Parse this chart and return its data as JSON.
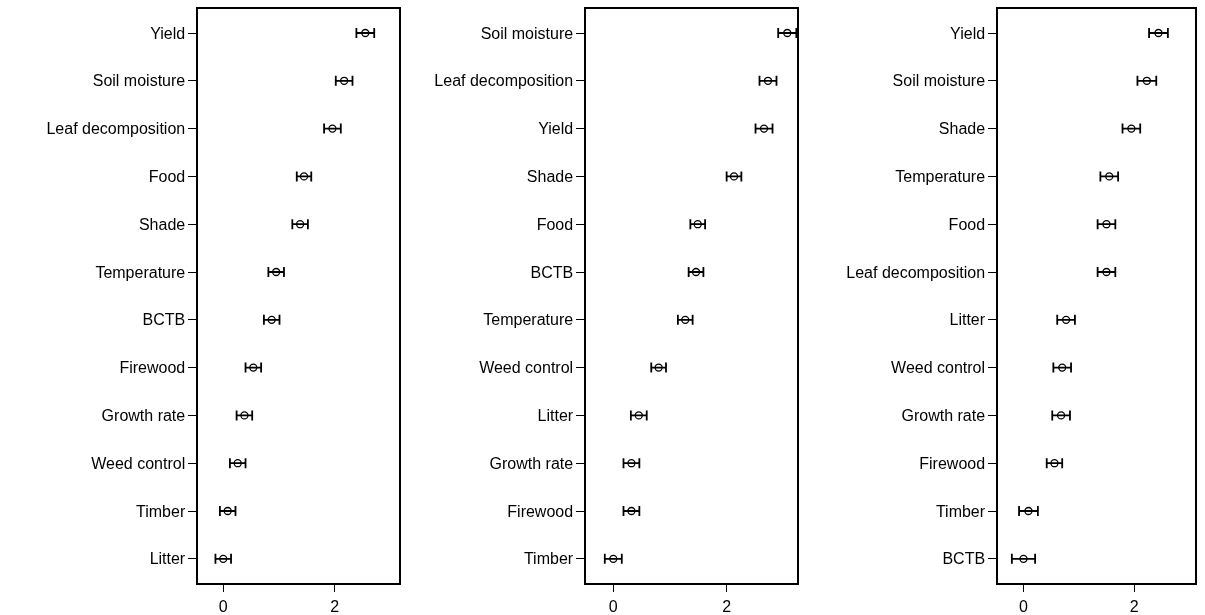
{
  "chart_data": [
    {
      "type": "scatter",
      "orientation": "horizontal",
      "marker": "circle",
      "color": "#000000",
      "categories": [
        "Yield",
        "Soil moisture",
        "Leaf decomposition",
        "Food",
        "Shade",
        "Temperature",
        "BCTB",
        "Firewood",
        "Growth rate",
        "Weed control",
        "Timber",
        "Litter"
      ],
      "values": [
        2.55,
        2.17,
        1.96,
        1.45,
        1.38,
        0.95,
        0.87,
        0.54,
        0.38,
        0.26,
        0.08,
        0
      ],
      "errors": [
        0.16,
        0.15,
        0.15,
        0.13,
        0.14,
        0.14,
        0.14,
        0.14,
        0.14,
        0.14,
        0.14,
        0.14
      ],
      "xlim": [
        -0.45,
        3.15
      ],
      "xticks": [
        0,
        2
      ]
    },
    {
      "type": "scatter",
      "orientation": "horizontal",
      "marker": "circle",
      "color": "#000000",
      "categories": [
        "Soil moisture",
        "Leaf decomposition",
        "Yield",
        "Shade",
        "Food",
        "BCTB",
        "Temperature",
        "Weed control",
        "Litter",
        "Growth rate",
        "Firewood",
        "Timber"
      ],
      "values": [
        3.07,
        2.73,
        2.66,
        2.13,
        1.49,
        1.46,
        1.27,
        0.8,
        0.45,
        0.32,
        0.32,
        0
      ],
      "errors": [
        0.16,
        0.15,
        0.15,
        0.13,
        0.13,
        0.13,
        0.13,
        0.13,
        0.14,
        0.14,
        0.14,
        0.15
      ],
      "xlim": [
        -0.48,
        3.25
      ],
      "xticks": [
        0,
        2
      ]
    },
    {
      "type": "scatter",
      "orientation": "horizontal",
      "marker": "circle",
      "color": "#000000",
      "categories": [
        "Yield",
        "Soil moisture",
        "Shade",
        "Temperature",
        "Food",
        "Leaf decomposition",
        "Litter",
        "Weed control",
        "Growth rate",
        "Firewood",
        "Timber",
        "BCTB"
      ],
      "values": [
        2.44,
        2.23,
        1.95,
        1.55,
        1.5,
        1.5,
        0.77,
        0.7,
        0.68,
        0.56,
        0.09,
        0
      ],
      "errors": [
        0.17,
        0.17,
        0.16,
        0.16,
        0.16,
        0.16,
        0.16,
        0.16,
        0.16,
        0.14,
        0.17,
        0.21
      ],
      "xlim": [
        -0.46,
        3.1
      ],
      "xticks": [
        0,
        2
      ]
    }
  ]
}
